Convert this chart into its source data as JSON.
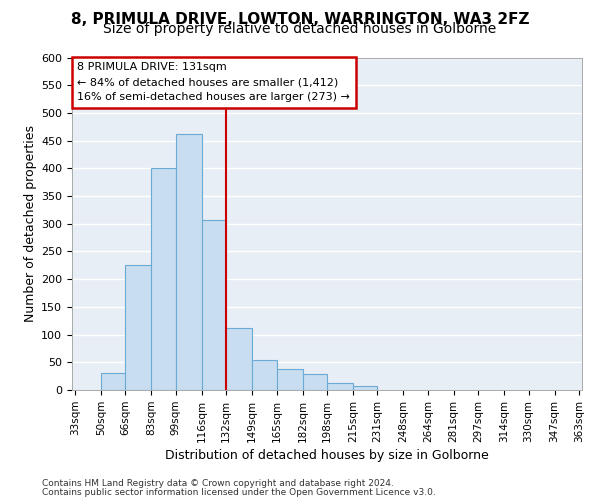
{
  "title_line1": "8, PRIMULA DRIVE, LOWTON, WARRINGTON, WA3 2FZ",
  "title_line2": "Size of property relative to detached houses in Golborne",
  "xlabel": "Distribution of detached houses by size in Golborne",
  "ylabel": "Number of detached properties",
  "bin_edges": [
    33,
    50,
    66,
    83,
    99,
    116,
    132,
    149,
    165,
    182,
    198,
    215,
    231,
    248,
    264,
    281,
    297,
    314,
    330,
    347,
    363
  ],
  "bar_heights": [
    0,
    30,
    225,
    400,
    462,
    307,
    112,
    55,
    37,
    28,
    13,
    8,
    0,
    0,
    0,
    0,
    0,
    0,
    0,
    0
  ],
  "bar_facecolor": "#c8ddf0",
  "bar_edgecolor": "#6aaad4",
  "vline_x": 132,
  "vline_color": "#cc0000",
  "annotation_title": "8 PRIMULA DRIVE: 131sqm",
  "annotation_line1": "← 84% of detached houses are smaller (1,412)",
  "annotation_line2": "16% of semi-detached houses are larger (273) →",
  "ylim": [
    0,
    600
  ],
  "yticks": [
    0,
    50,
    100,
    150,
    200,
    250,
    300,
    350,
    400,
    450,
    500,
    550,
    600
  ],
  "footnote1": "Contains HM Land Registry data © Crown copyright and database right 2024.",
  "footnote2": "Contains public sector information licensed under the Open Government Licence v3.0.",
  "bg_color": "#ffffff",
  "plot_bg_color": "#e8eef5",
  "grid_color": "#ffffff",
  "title_fontsize": 11,
  "subtitle_fontsize": 10,
  "annot_fontsize": 8,
  "xlabel_fontsize": 9,
  "ylabel_fontsize": 9,
  "tick_fontsize": 7.5,
  "footnote_fontsize": 6.5
}
